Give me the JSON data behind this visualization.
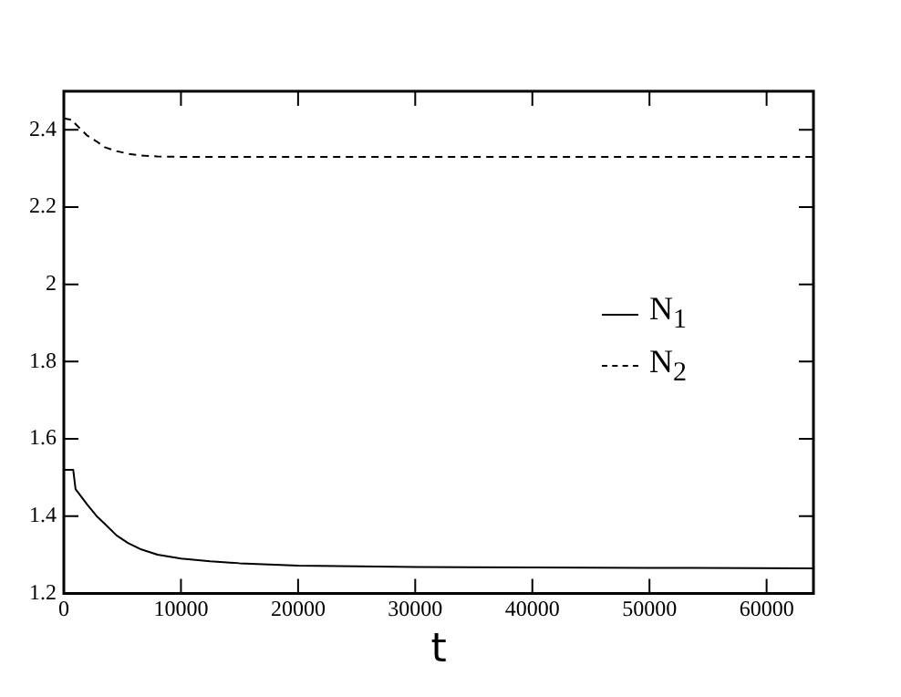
{
  "chart_data": {
    "type": "line",
    "xlabel": "t",
    "x": [
      0,
      800,
      1000,
      1500,
      2000,
      2800,
      3500,
      4500,
      5500,
      6500,
      8000,
      10000,
      12500,
      15000,
      20000,
      25000,
      30000,
      40000,
      50000,
      64000
    ],
    "series": [
      {
        "name": "N$_{1}$",
        "color": "#000000",
        "line_style": "solid",
        "values": [
          1.52,
          1.52,
          1.47,
          1.45,
          1.43,
          1.4,
          1.38,
          1.35,
          1.33,
          1.315,
          1.3,
          1.29,
          1.283,
          1.278,
          1.272,
          1.27,
          1.268,
          1.267,
          1.266,
          1.265
        ]
      },
      {
        "name": "N$_{2}$",
        "color": "#000000",
        "line_style": "dashed",
        "values": [
          2.43,
          2.425,
          2.415,
          2.4,
          2.385,
          2.37,
          2.355,
          2.345,
          2.338,
          2.334,
          2.331,
          2.33,
          2.33,
          2.33,
          2.33,
          2.33,
          2.33,
          2.33,
          2.33,
          2.33
        ]
      }
    ],
    "xlim": [
      0,
      64000
    ],
    "xticks": [
      0,
      10000,
      20000,
      30000,
      40000,
      50000,
      60000
    ],
    "ylim": [
      1.2,
      2.5
    ],
    "yticks": [
      1.2,
      1.4,
      1.6,
      1.8,
      2,
      2.2,
      2.4
    ],
    "grid": false,
    "legend": "right",
    "marker": "none"
  }
}
